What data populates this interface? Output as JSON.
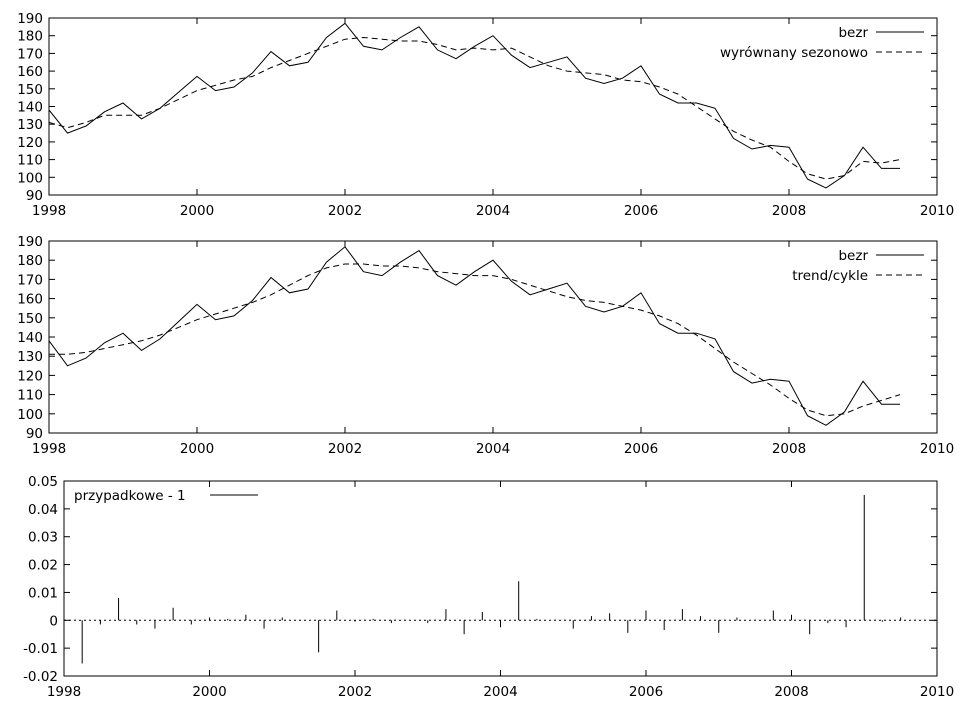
{
  "chart_data": [
    {
      "type": "line",
      "xlim": [
        1998,
        2010
      ],
      "ylim": [
        90,
        190
      ],
      "xticks": [
        "1998",
        "2000",
        "2002",
        "2004",
        "2006",
        "2008",
        "2010"
      ],
      "yticks": [
        "90",
        "100",
        "110",
        "120",
        "130",
        "140",
        "150",
        "160",
        "170",
        "180",
        "190"
      ],
      "legend_position": "top-right",
      "x": [
        1998.0,
        1998.25,
        1998.5,
        1998.75,
        1999.0,
        1999.25,
        1999.5,
        1999.75,
        2000.0,
        2000.25,
        2000.5,
        2000.75,
        2001.0,
        2001.25,
        2001.5,
        2001.75,
        2002.0,
        2002.25,
        2002.5,
        2002.75,
        2003.0,
        2003.25,
        2003.5,
        2003.75,
        2004.0,
        2004.25,
        2004.5,
        2004.75,
        2005.0,
        2005.25,
        2005.5,
        2005.75,
        2006.0,
        2006.25,
        2006.5,
        2006.75,
        2007.0,
        2007.25,
        2007.5,
        2007.75,
        2008.0,
        2008.25,
        2008.5,
        2008.75,
        2009.0,
        2009.25,
        2009.5
      ],
      "series": [
        {
          "name": "bezr",
          "style": "solid",
          "values": [
            138,
            125,
            129,
            137,
            142,
            133,
            139,
            148,
            157,
            149,
            151,
            159,
            171,
            163,
            165,
            179,
            187,
            174,
            172,
            179,
            185,
            172,
            167,
            174,
            180,
            169,
            162,
            165,
            168,
            156,
            153,
            156,
            163,
            147,
            142,
            142,
            139,
            122,
            116,
            118,
            117,
            99,
            94,
            101,
            117,
            105,
            105
          ]
        },
        {
          "name": "wyrównany sezonowo",
          "style": "dashed",
          "values": [
            131,
            128,
            131,
            135,
            135,
            135,
            139,
            144,
            149,
            152,
            155,
            157,
            162,
            166,
            170,
            174,
            178,
            179,
            178,
            177,
            177,
            175,
            172,
            173,
            172,
            173,
            168,
            163,
            160,
            159,
            158,
            155,
            154,
            151,
            147,
            140,
            133,
            126,
            121,
            117,
            109,
            102,
            99,
            101,
            109,
            108,
            110
          ]
        }
      ]
    },
    {
      "type": "line",
      "xlim": [
        1998,
        2010
      ],
      "ylim": [
        90,
        190
      ],
      "xticks": [
        "1998",
        "2000",
        "2002",
        "2004",
        "2006",
        "2008",
        "2010"
      ],
      "yticks": [
        "90",
        "100",
        "110",
        "120",
        "130",
        "140",
        "150",
        "160",
        "170",
        "180",
        "190"
      ],
      "legend_position": "top-right",
      "x": [
        1998.0,
        1998.25,
        1998.5,
        1998.75,
        1999.0,
        1999.25,
        1999.5,
        1999.75,
        2000.0,
        2000.25,
        2000.5,
        2000.75,
        2001.0,
        2001.25,
        2001.5,
        2001.75,
        2002.0,
        2002.25,
        2002.5,
        2002.75,
        2003.0,
        2003.25,
        2003.5,
        2003.75,
        2004.0,
        2004.25,
        2004.5,
        2004.75,
        2005.0,
        2005.25,
        2005.5,
        2005.75,
        2006.0,
        2006.25,
        2006.5,
        2006.75,
        2007.0,
        2007.25,
        2007.5,
        2007.75,
        2008.0,
        2008.25,
        2008.5,
        2008.75,
        2009.0,
        2009.25,
        2009.5
      ],
      "series": [
        {
          "name": "bezr",
          "style": "solid",
          "values": [
            138,
            125,
            129,
            137,
            142,
            133,
            139,
            148,
            157,
            149,
            151,
            159,
            171,
            163,
            165,
            179,
            187,
            174,
            172,
            179,
            185,
            172,
            167,
            174,
            180,
            169,
            162,
            165,
            168,
            156,
            153,
            156,
            163,
            147,
            142,
            142,
            139,
            122,
            116,
            118,
            117,
            99,
            94,
            101,
            117,
            105,
            105
          ]
        },
        {
          "name": "trend/cykle",
          "style": "dashed",
          "values": [
            131,
            131,
            132,
            134,
            136,
            138,
            141,
            145,
            149,
            152,
            155,
            158,
            162,
            167,
            172,
            176,
            178,
            178,
            177,
            177,
            176,
            174,
            173,
            172,
            172,
            170,
            167,
            164,
            161,
            159,
            158,
            156,
            154,
            151,
            147,
            141,
            134,
            127,
            121,
            115,
            108,
            102,
            99,
            100,
            104,
            107,
            110
          ]
        }
      ]
    },
    {
      "type": "bar",
      "xlim": [
        1998,
        2010
      ],
      "ylim": [
        -0.02,
        0.05
      ],
      "xticks": [
        "1998",
        "2000",
        "2002",
        "2004",
        "2006",
        "2008",
        "2010"
      ],
      "yticks": [
        "-0.02",
        "-0.01",
        "0",
        "0.01",
        "0.02",
        "0.03",
        "0.04",
        "0.05"
      ],
      "legend_position": "top-left",
      "x": [
        1998.0,
        1998.25,
        1998.5,
        1998.75,
        1999.0,
        1999.25,
        1999.5,
        1999.75,
        2000.0,
        2000.25,
        2000.5,
        2000.75,
        2001.0,
        2001.25,
        2001.5,
        2001.75,
        2002.0,
        2002.25,
        2002.5,
        2002.75,
        2003.0,
        2003.25,
        2003.5,
        2003.75,
        2004.0,
        2004.25,
        2004.5,
        2004.75,
        2005.0,
        2005.25,
        2005.5,
        2005.75,
        2006.0,
        2006.25,
        2006.5,
        2006.75,
        2007.0,
        2007.25,
        2007.5,
        2007.75,
        2008.0,
        2008.25,
        2008.5,
        2008.75,
        2009.0,
        2009.25,
        2009.5
      ],
      "series": [
        {
          "name": "przypadkowe - 1",
          "style": "solid",
          "values": [
            0.0,
            -0.0155,
            -0.0015,
            0.008,
            -0.0015,
            -0.003,
            0.0045,
            -0.0015,
            0.001,
            0.0005,
            0.002,
            -0.003,
            0.001,
            0.0,
            -0.0115,
            0.0035,
            -0.0005,
            0.0005,
            -0.001,
            0.0,
            -0.001,
            0.004,
            -0.005,
            0.003,
            -0.0025,
            0.014,
            0.0005,
            0.0,
            -0.003,
            0.0015,
            0.0025,
            -0.0045,
            0.0035,
            -0.0035,
            0.004,
            0.0015,
            -0.0045,
            0.001,
            0.0,
            0.0035,
            0.002,
            -0.005,
            -0.001,
            -0.0025,
            0.045,
            -0.0005,
            0.001
          ]
        }
      ]
    }
  ]
}
